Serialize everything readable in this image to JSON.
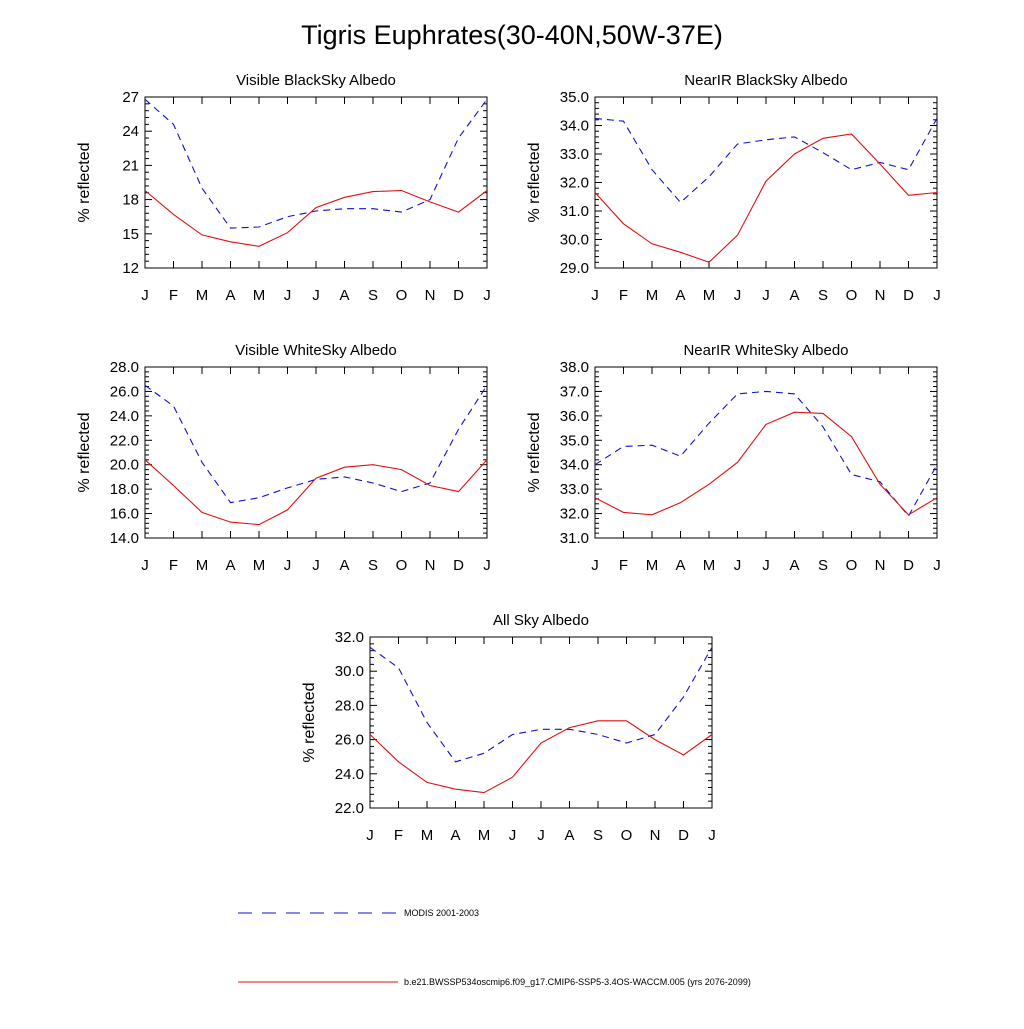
{
  "title": "Tigris Euphrates(30-40N,50W-37E)",
  "colors": {
    "modis": "#1010d0",
    "model": "#e01010",
    "axis": "#000000"
  },
  "legend": [
    {
      "name": "MODIS 2001-2003",
      "style": "dashed",
      "color": "#1010d0"
    },
    {
      "name": "b.e21.BWSSP534oscmip6.f09_g17.CMIP6-SSP5-3.4OS-WACCM.005 (yrs 2076-2099)",
      "style": "solid",
      "color": "#e01010"
    }
  ],
  "chart_data": [
    {
      "type": "line",
      "title": "Visible BlackSky Albedo",
      "ylabel": "% reflected",
      "categories": [
        "J",
        "F",
        "M",
        "A",
        "M",
        "J",
        "J",
        "A",
        "S",
        "O",
        "N",
        "D",
        "J"
      ],
      "ylim": [
        12,
        27
      ],
      "yticks": [
        "12",
        "15",
        "18",
        "21",
        "24",
        "27"
      ],
      "series": [
        {
          "name": "MODIS 2001-2003",
          "values": [
            26.8,
            24.6,
            19.0,
            15.5,
            15.6,
            16.5,
            17.0,
            17.2,
            17.2,
            16.9,
            18.0,
            23.4,
            26.8
          ]
        },
        {
          "name": "b.e21.BWSSP534oscmip6.f09_g17.CMIP6-SSP5-3.4OS-WACCM.005 (yrs 2076-2099)",
          "values": [
            18.8,
            16.7,
            14.9,
            14.3,
            13.9,
            15.1,
            17.3,
            18.2,
            18.7,
            18.8,
            17.8,
            16.9,
            18.8
          ]
        }
      ]
    },
    {
      "type": "line",
      "title": "NearIR BlackSky Albedo",
      "ylabel": "% reflected",
      "categories": [
        "J",
        "F",
        "M",
        "A",
        "M",
        "J",
        "J",
        "A",
        "S",
        "O",
        "N",
        "D",
        "J"
      ],
      "ylim": [
        29.0,
        35.0
      ],
      "yticks": [
        "29.0",
        "30.0",
        "31.0",
        "32.0",
        "33.0",
        "34.0",
        "35.0"
      ],
      "series": [
        {
          "name": "MODIS 2001-2003",
          "values": [
            34.25,
            34.15,
            32.45,
            31.3,
            32.2,
            33.35,
            33.5,
            33.6,
            33.05,
            32.45,
            32.7,
            32.45,
            34.25
          ]
        },
        {
          "name": "b.e21.BWSSP534oscmip6.f09_g17.CMIP6-SSP5-3.4OS-WACCM.005 (yrs 2076-2099)",
          "values": [
            31.65,
            30.55,
            29.85,
            29.55,
            29.2,
            30.15,
            32.05,
            33.0,
            33.55,
            33.7,
            32.65,
            31.55,
            31.65
          ]
        }
      ]
    },
    {
      "type": "line",
      "title": "Visible WhiteSky Albedo",
      "ylabel": "% reflected",
      "categories": [
        "J",
        "F",
        "M",
        "A",
        "M",
        "J",
        "J",
        "A",
        "S",
        "O",
        "N",
        "D",
        "J"
      ],
      "ylim": [
        14.0,
        28.0
      ],
      "yticks": [
        "14.0",
        "16.0",
        "18.0",
        "20.0",
        "22.0",
        "24.0",
        "26.0",
        "28.0"
      ],
      "series": [
        {
          "name": "MODIS 2001-2003",
          "values": [
            26.5,
            24.8,
            20.2,
            16.9,
            17.3,
            18.1,
            18.8,
            19.0,
            18.5,
            17.8,
            18.5,
            22.9,
            26.5
          ]
        },
        {
          "name": "b.e21.BWSSP534oscmip6.f09_g17.CMIP6-SSP5-3.4OS-WACCM.005 (yrs 2076-2099)",
          "values": [
            20.4,
            18.3,
            16.1,
            15.3,
            15.1,
            16.3,
            18.9,
            19.8,
            20.0,
            19.6,
            18.3,
            17.8,
            20.4
          ]
        }
      ]
    },
    {
      "type": "line",
      "title": "NearIR WhiteSky Albedo",
      "ylabel": "% reflected",
      "categories": [
        "J",
        "F",
        "M",
        "A",
        "M",
        "J",
        "J",
        "A",
        "S",
        "O",
        "N",
        "D",
        "J"
      ],
      "ylim": [
        31.0,
        38.0
      ],
      "yticks": [
        "31.0",
        "32.0",
        "33.0",
        "34.0",
        "35.0",
        "36.0",
        "37.0",
        "38.0"
      ],
      "series": [
        {
          "name": "MODIS 2001-2003",
          "values": [
            34.0,
            34.75,
            34.8,
            34.35,
            35.7,
            36.9,
            37.0,
            36.9,
            35.55,
            33.6,
            33.3,
            31.9,
            34.0
          ]
        },
        {
          "name": "b.e21.BWSSP534oscmip6.f09_g17.CMIP6-SSP5-3.4OS-WACCM.005 (yrs 2076-2099)",
          "values": [
            32.65,
            32.05,
            31.95,
            32.45,
            33.2,
            34.1,
            35.65,
            36.15,
            36.1,
            35.15,
            33.2,
            31.95,
            32.65
          ]
        }
      ]
    },
    {
      "type": "line",
      "title": "All Sky Albedo",
      "ylabel": "% reflected",
      "categories": [
        "J",
        "F",
        "M",
        "A",
        "M",
        "J",
        "J",
        "A",
        "S",
        "O",
        "N",
        "D",
        "J"
      ],
      "ylim": [
        22.0,
        32.0
      ],
      "yticks": [
        "22.0",
        "24.0",
        "26.0",
        "28.0",
        "30.0",
        "32.0"
      ],
      "series": [
        {
          "name": "MODIS 2001-2003",
          "values": [
            31.4,
            30.2,
            27.0,
            24.7,
            25.2,
            26.3,
            26.6,
            26.6,
            26.3,
            25.8,
            26.3,
            28.5,
            31.4
          ]
        },
        {
          "name": "b.e21.BWSSP534oscmip6.f09_g17.CMIP6-SSP5-3.4OS-WACCM.005 (yrs 2076-2099)",
          "values": [
            26.3,
            24.7,
            23.5,
            23.1,
            22.9,
            23.8,
            25.8,
            26.7,
            27.1,
            27.1,
            26.0,
            25.1,
            26.3
          ]
        }
      ]
    }
  ]
}
